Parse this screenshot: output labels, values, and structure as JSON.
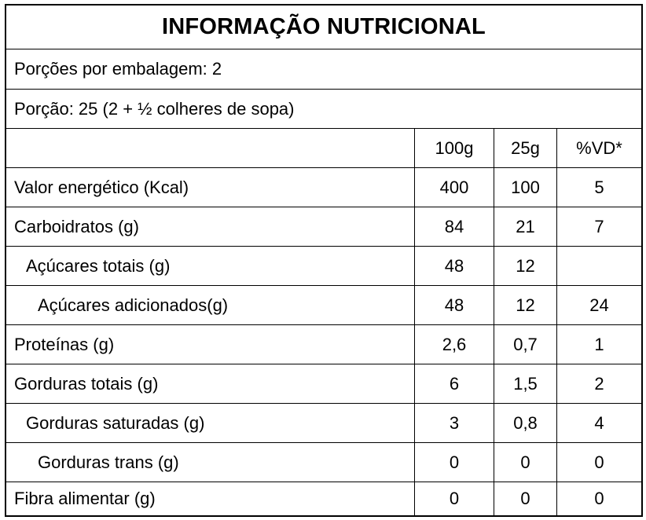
{
  "title": "INFORMAÇÃO NUTRICIONAL",
  "servings_per_package": "Porções por embalagem: 2",
  "serving_size": "Porção: 25 (2 + ½ colheres de sopa)",
  "columns": {
    "name": "",
    "per_100g": "100g",
    "per_serving": "25g",
    "daily_value": "%VD*"
  },
  "rows": [
    {
      "name": "Valor energético (Kcal)",
      "per_100g": "400",
      "per_serving": "100",
      "daily_value": "5"
    },
    {
      "name": "Carboidratos (g)",
      "per_100g": "84",
      "per_serving": "21",
      "daily_value": "7"
    },
    {
      "name": "Açúcares totais (g)",
      "per_100g": "48",
      "per_serving": "12",
      "daily_value": ""
    },
    {
      "name": "Açúcares adicionados(g)",
      "per_100g": "48",
      "per_serving": "12",
      "daily_value": "24"
    },
    {
      "name": "Proteínas (g)",
      "per_100g": "2,6",
      "per_serving": "0,7",
      "daily_value": "1"
    },
    {
      "name": "Gorduras totais (g)",
      "per_100g": "6",
      "per_serving": "1,5",
      "daily_value": "2"
    },
    {
      "name": "Gorduras saturadas (g)",
      "per_100g": "3",
      "per_serving": "0,8",
      "daily_value": "4"
    },
    {
      "name": "Gorduras trans (g)",
      "per_100g": "0",
      "per_serving": "0",
      "daily_value": "0"
    },
    {
      "name": "Fibra alimentar (g)",
      "per_100g": "0",
      "per_serving": "0",
      "daily_value": "0"
    }
  ]
}
